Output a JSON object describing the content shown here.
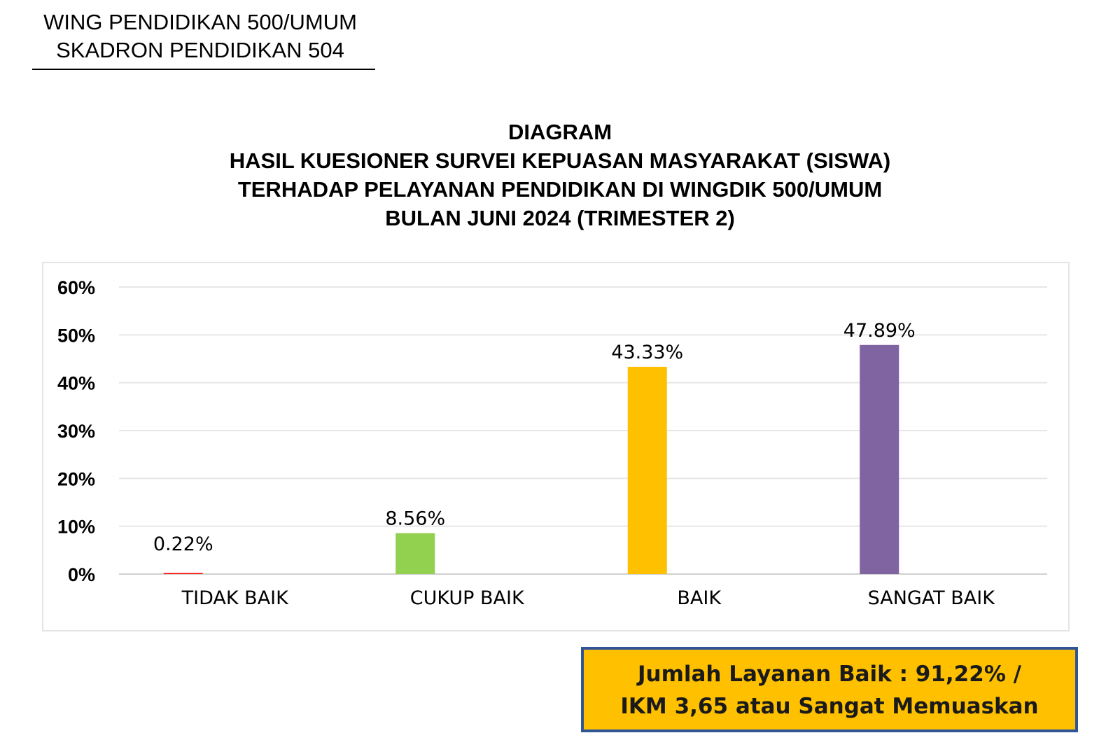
{
  "header": {
    "line1": "WING PENDIDIKAN 500/UMUM",
    "line2": "SKADRON PENDIDIKAN 504"
  },
  "title": {
    "line1": "DIAGRAM",
    "line2": "HASIL KUESIONER SURVEI KEPUASAN MASYARAKAT (SISWA)",
    "line3": "TERHADAP PELAYANAN PENDIDIKAN DI WINGDIK 500/UMUM",
    "line4": "BULAN JUNI 2024 (TRIMESTER 2)"
  },
  "chart_data": {
    "type": "bar",
    "categories": [
      "TIDAK BAIK",
      "CUKUP BAIK",
      "BAIK",
      "SANGAT BAIK"
    ],
    "values": [
      0.22,
      8.56,
      43.33,
      47.89
    ],
    "data_labels": [
      "0.22%",
      "8.56%",
      "43.33%",
      "47.89%"
    ],
    "colors": [
      "#ff0000",
      "#92d050",
      "#ffc000",
      "#8064a2"
    ],
    "ylim": [
      0,
      60
    ],
    "yticks": [
      0,
      10,
      20,
      30,
      40,
      50,
      60
    ],
    "ytick_labels": [
      "0%",
      "10%",
      "20%",
      "30%",
      "40%",
      "50%",
      "60%"
    ],
    "grid": true,
    "legend": "none"
  },
  "summary": {
    "line1": "Jumlah Layanan Baik : 91,22% /",
    "line2": "IKM  3,65 atau Sangat Memuaskan"
  }
}
